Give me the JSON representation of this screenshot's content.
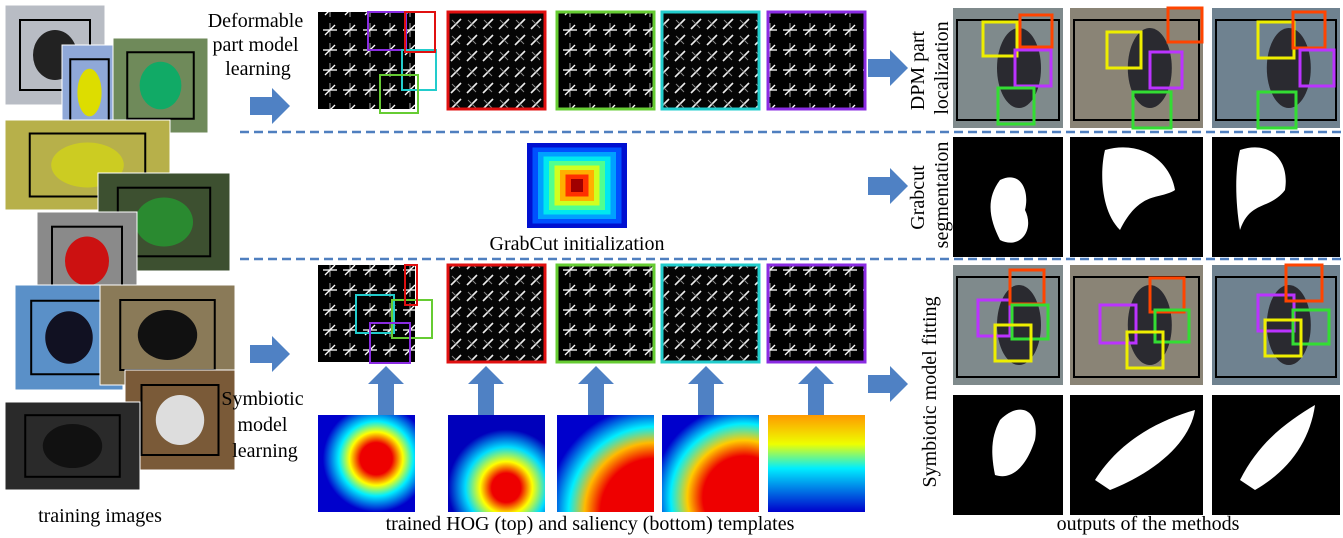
{
  "training": {
    "caption": "training images"
  },
  "top_row": {
    "label": [
      "Deformable",
      "part model",
      "learning"
    ]
  },
  "middle_row": {
    "caption": "GrabCut initialization"
  },
  "bottom_row": {
    "label": [
      "Symbiotic",
      "model",
      "learning"
    ]
  },
  "templates_caption": "trained HOG (top) and saliency (bottom) templates",
  "outputs": {
    "caption": "outputs of the methods",
    "row_labels": [
      [
        "DPM part",
        "localization"
      ],
      [
        "Grabcut",
        "segmentation"
      ],
      [
        "Symbiotic model fitting"
      ]
    ]
  }
}
